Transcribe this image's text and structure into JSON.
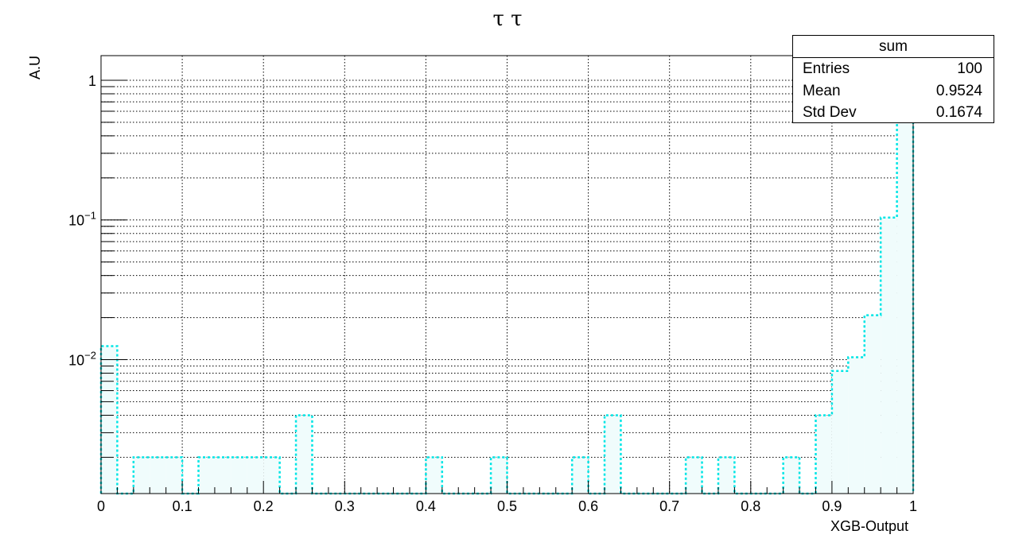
{
  "chart_data": {
    "type": "histogram",
    "title": "τ τ",
    "xlabel": "XGB-Output",
    "ylabel": "A.U",
    "xlim": [
      0,
      1
    ],
    "ylim": [
      0.0011,
      1.5
    ],
    "y_scale": "log",
    "grid": true,
    "line_color": "#00e5e5",
    "fill_color": "#f0fcfc",
    "x_ticks": [
      "0",
      "0.1",
      "0.2",
      "0.3",
      "0.4",
      "0.5",
      "0.6",
      "0.7",
      "0.8",
      "0.9",
      "1"
    ],
    "y_ticks": [
      {
        "base": "1",
        "exp": ""
      },
      {
        "base": "10",
        "exp": "−1"
      },
      {
        "base": "10",
        "exp": "−2"
      }
    ],
    "bin_width": 0.02,
    "bins": [
      {
        "x": 0.0,
        "y": 0.0125
      },
      {
        "x": 0.04,
        "y": 0.002
      },
      {
        "x": 0.06,
        "y": 0.002
      },
      {
        "x": 0.08,
        "y": 0.002
      },
      {
        "x": 0.12,
        "y": 0.002
      },
      {
        "x": 0.14,
        "y": 0.002
      },
      {
        "x": 0.16,
        "y": 0.002
      },
      {
        "x": 0.18,
        "y": 0.002
      },
      {
        "x": 0.2,
        "y": 0.002
      },
      {
        "x": 0.24,
        "y": 0.004
      },
      {
        "x": 0.4,
        "y": 0.002
      },
      {
        "x": 0.48,
        "y": 0.002
      },
      {
        "x": 0.58,
        "y": 0.002
      },
      {
        "x": 0.62,
        "y": 0.004
      },
      {
        "x": 0.72,
        "y": 0.002
      },
      {
        "x": 0.76,
        "y": 0.002
      },
      {
        "x": 0.84,
        "y": 0.002
      },
      {
        "x": 0.88,
        "y": 0.004
      },
      {
        "x": 0.9,
        "y": 0.0083
      },
      {
        "x": 0.92,
        "y": 0.0104
      },
      {
        "x": 0.94,
        "y": 0.0208
      },
      {
        "x": 0.96,
        "y": 0.104
      },
      {
        "x": 0.98,
        "y": 0.83
      }
    ]
  },
  "stats": {
    "title": "sum",
    "entries_label": "Entries",
    "entries_value": "100",
    "mean_label": "Mean",
    "mean_value": "0.9524",
    "stddev_label": "Std Dev",
    "stddev_value": "0.1674"
  }
}
